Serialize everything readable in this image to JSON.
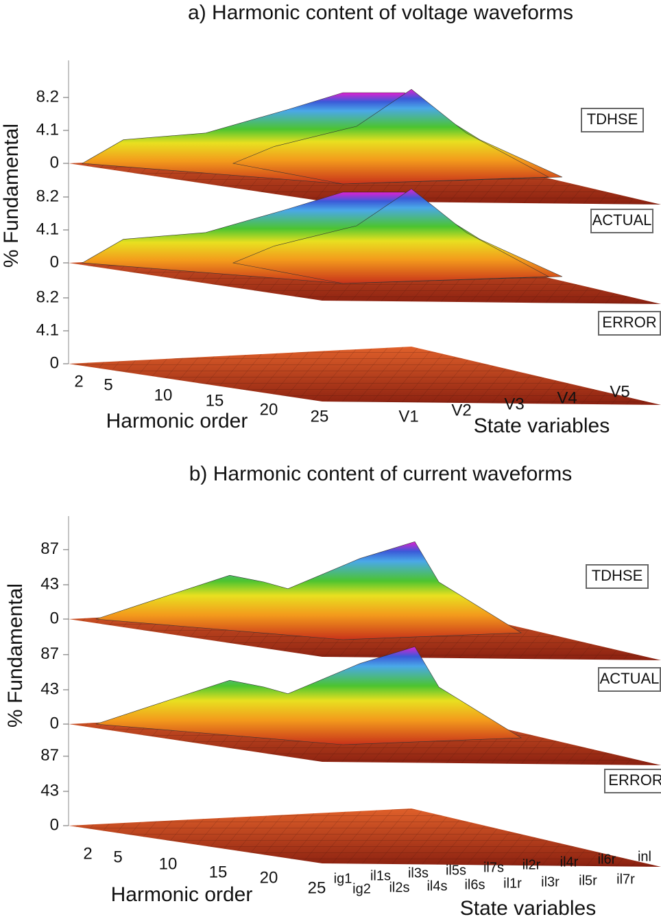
{
  "panels": [
    {
      "title": "a) Harmonic content of voltage waveforms",
      "y_label": "% Fundamental",
      "layers": [
        "TDHSE",
        "ACTUAL",
        "ERROR"
      ],
      "z_ticks": [
        0,
        4.1,
        8.2
      ],
      "x_label": "Harmonic order",
      "x_ticks": [
        2,
        5,
        10,
        15,
        20,
        25
      ],
      "state_label": "State variables",
      "states": [
        "V1",
        "V2",
        "V3",
        "V4",
        "V5"
      ]
    },
    {
      "title": "b) Harmonic content of current waveforms",
      "y_label": "% Fundamental",
      "layers": [
        "TDHSE",
        "ACTUAL",
        "ERROR"
      ],
      "z_ticks": [
        0,
        43,
        87
      ],
      "x_label": "Harmonic order",
      "x_ticks": [
        2,
        5,
        10,
        15,
        20,
        25
      ],
      "state_label": "State variables",
      "states": [
        "ig1",
        "ig2",
        "il1s",
        "il2s",
        "il3s",
        "il4s",
        "il5s",
        "il6s",
        "il7s",
        "il1r",
        "il2r",
        "il3r",
        "il4r",
        "il5r",
        "il6r",
        "il7r",
        "inl"
      ]
    }
  ]
}
